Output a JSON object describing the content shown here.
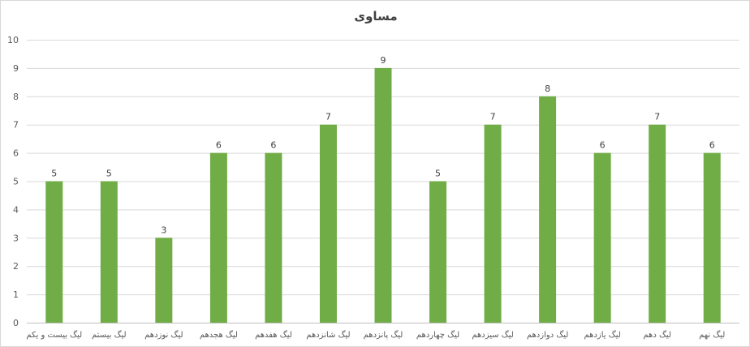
{
  "chart_data": {
    "type": "bar",
    "title": "مساوی",
    "categories": [
      "لیگ بیست و یکم",
      "لیگ بیستم",
      "لیگ نوزدهم",
      "لیگ هجدهم",
      "لیگ هفدهم",
      "لیگ شانزدهم",
      "لیگ پانزدهم",
      "لیگ چهاردهم",
      "لیگ سیزدهم",
      "لیگ دوازدهم",
      "لیگ یازدهم",
      "لیگ دهم",
      "لیگ نهم"
    ],
    "values": [
      5,
      5,
      3,
      6,
      6,
      7,
      9,
      5,
      7,
      8,
      6,
      7,
      6
    ],
    "ylim": [
      0,
      10
    ],
    "yticks": [
      0,
      1,
      2,
      3,
      4,
      5,
      6,
      7,
      8,
      9,
      10
    ],
    "grid": true,
    "data_labels": true,
    "bar_color": "#70ad47"
  }
}
